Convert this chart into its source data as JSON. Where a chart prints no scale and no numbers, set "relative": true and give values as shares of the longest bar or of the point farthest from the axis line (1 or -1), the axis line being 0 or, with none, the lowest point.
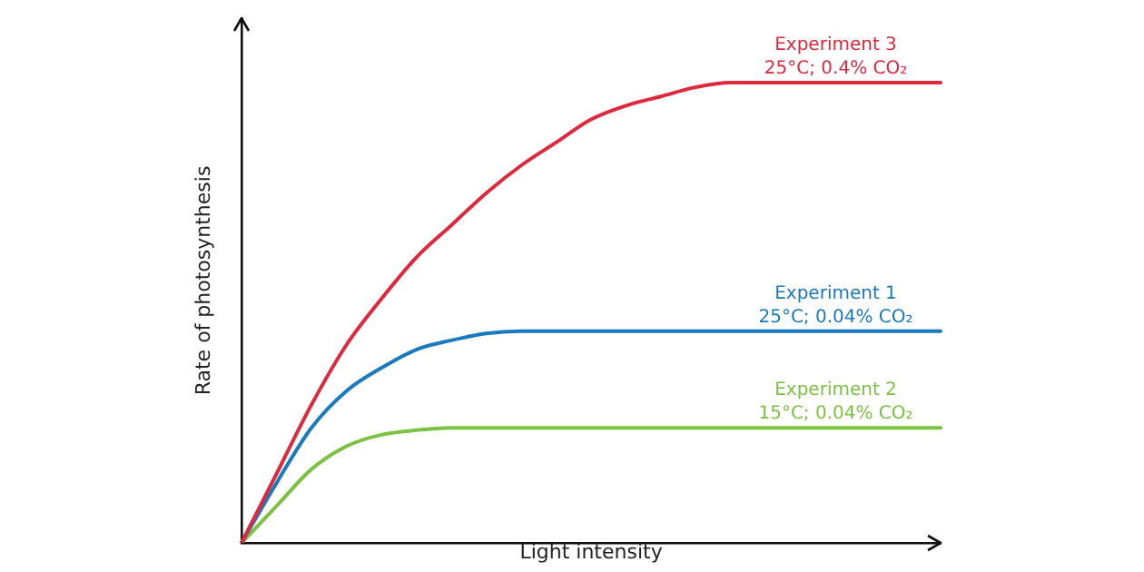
{
  "chart_data": {
    "type": "line",
    "relative": true,
    "xlabel": "Light intensity",
    "ylabel": "Rate of photosynthesis",
    "categories": [
      null,
      null,
      null,
      null,
      null,
      null,
      null,
      null,
      null,
      null,
      null,
      null,
      null,
      null,
      null,
      null,
      null,
      null,
      null,
      null,
      null
    ],
    "series": [
      {
        "name": "Experiment 3",
        "color": "#e0283c",
        "values": [
          0,
          0.15,
          0.3,
          0.43,
          0.53,
          0.62,
          0.69,
          0.76,
          0.82,
          0.87,
          0.92,
          0.95,
          0.97,
          0.99,
          1,
          1,
          1,
          1,
          1,
          1,
          1
        ]
      },
      {
        "name": "Experiment 1",
        "color": "#1a7abf",
        "values": [
          0,
          0.13,
          0.25,
          0.33,
          0.38,
          0.42,
          0.44,
          0.455,
          0.46,
          0.46,
          0.46,
          0.46,
          0.46,
          0.46,
          0.46,
          0.46,
          0.46,
          0.46,
          0.46,
          0.46,
          0.46
        ]
      },
      {
        "name": "Experiment 2",
        "color": "#7cc242",
        "values": [
          0,
          0.08,
          0.16,
          0.21,
          0.235,
          0.245,
          0.25,
          0.25,
          0.25,
          0.25,
          0.25,
          0.25,
          0.25,
          0.25,
          0.25,
          0.25,
          0.25,
          0.25,
          0.25,
          0.25,
          0.25
        ]
      }
    ],
    "annotations": [
      "25°C; 0.4% CO₂",
      "25°C; 0.04% CO₂",
      "15°C; 0.04% CO₂"
    ],
    "legend": false,
    "grid": false,
    "marker": "none",
    "line_style": "solid"
  }
}
